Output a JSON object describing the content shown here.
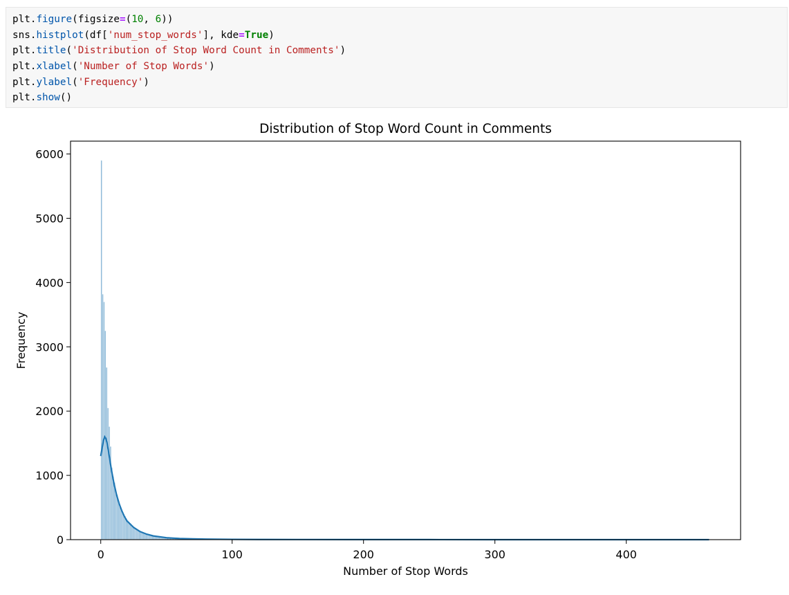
{
  "code_cell": {
    "lines": [
      [
        {
          "t": "plt."
        },
        {
          "t": "figure",
          "c": "fn"
        },
        {
          "t": "(figsize"
        },
        {
          "t": "=",
          "c": "op"
        },
        {
          "t": "("
        },
        {
          "t": "10",
          "c": "num"
        },
        {
          "t": ", "
        },
        {
          "t": "6",
          "c": "num"
        },
        {
          "t": "))"
        }
      ],
      [
        {
          "t": "sns."
        },
        {
          "t": "histplot",
          "c": "fn"
        },
        {
          "t": "(df["
        },
        {
          "t": "'num_stop_words'",
          "c": "str"
        },
        {
          "t": "], kde"
        },
        {
          "t": "=",
          "c": "op"
        },
        {
          "t": "True",
          "c": "kw"
        },
        {
          "t": ")"
        }
      ],
      [
        {
          "t": "plt."
        },
        {
          "t": "title",
          "c": "fn"
        },
        {
          "t": "("
        },
        {
          "t": "'Distribution of Stop Word Count in Comments'",
          "c": "str"
        },
        {
          "t": ")"
        }
      ],
      [
        {
          "t": "plt."
        },
        {
          "t": "xlabel",
          "c": "fn"
        },
        {
          "t": "("
        },
        {
          "t": "'Number of Stop Words'",
          "c": "str"
        },
        {
          "t": ")"
        }
      ],
      [
        {
          "t": "plt."
        },
        {
          "t": "ylabel",
          "c": "fn"
        },
        {
          "t": "("
        },
        {
          "t": "'Frequency'",
          "c": "str"
        },
        {
          "t": ")"
        }
      ],
      [
        {
          "t": "plt."
        },
        {
          "t": "show",
          "c": "fn"
        },
        {
          "t": "()"
        }
      ]
    ]
  },
  "chart_data": {
    "type": "bar",
    "title": "Distribution of Stop Word Count in Comments",
    "xlabel": "Number of Stop Words",
    "ylabel": "Frequency",
    "xlim": [
      -23,
      487
    ],
    "ylim": [
      0,
      6200
    ],
    "xticks": [
      0,
      100,
      200,
      300,
      400
    ],
    "yticks": [
      0,
      1000,
      2000,
      3000,
      4000,
      5000,
      6000
    ],
    "grid": false,
    "bar_color": "#1f77b4",
    "kde_color": "#1f77b4",
    "bins": {
      "x": [
        0,
        1,
        2,
        3,
        4,
        5,
        6,
        7,
        8,
        9,
        10,
        11,
        12,
        13,
        14,
        15,
        16,
        17,
        18,
        19,
        20,
        21,
        22,
        23,
        24,
        25,
        26,
        27,
        28,
        29,
        30,
        31,
        32,
        33,
        34,
        35,
        36,
        37,
        38,
        39,
        40,
        41,
        42,
        43,
        44,
        45,
        46,
        47,
        48,
        49,
        50,
        52,
        54,
        56,
        58,
        60,
        62,
        64,
        66,
        68,
        70,
        75,
        80,
        85,
        90,
        95,
        100,
        110,
        120,
        130,
        140,
        150,
        170,
        190,
        210,
        240,
        270,
        300,
        340,
        380,
        420,
        460
      ],
      "width": [
        1,
        1,
        1,
        1,
        1,
        1,
        1,
        1,
        1,
        1,
        1,
        1,
        1,
        1,
        1,
        1,
        1,
        1,
        1,
        1,
        1,
        1,
        1,
        1,
        1,
        1,
        1,
        1,
        1,
        1,
        1,
        1,
        1,
        1,
        1,
        1,
        1,
        1,
        1,
        1,
        1,
        1,
        1,
        1,
        1,
        1,
        1,
        1,
        1,
        1,
        2,
        2,
        2,
        2,
        2,
        2,
        2,
        2,
        2,
        2,
        5,
        5,
        5,
        5,
        5,
        5,
        10,
        10,
        10,
        10,
        10,
        20,
        20,
        20,
        30,
        30,
        30,
        40,
        40,
        40,
        40,
        3
      ],
      "values": [
        5900,
        3820,
        3700,
        3250,
        2680,
        2050,
        1760,
        1450,
        1120,
        980,
        890,
        760,
        700,
        600,
        540,
        480,
        440,
        400,
        370,
        330,
        300,
        280,
        260,
        240,
        220,
        200,
        185,
        170,
        155,
        140,
        130,
        120,
        110,
        100,
        92,
        85,
        78,
        72,
        66,
        60,
        55,
        52,
        48,
        45,
        42,
        40,
        37,
        35,
        33,
        31,
        29,
        27,
        25,
        23,
        21,
        19,
        17,
        15,
        14,
        13,
        11,
        9,
        8,
        7,
        6,
        5,
        4,
        3,
        3,
        2,
        2,
        1,
        1,
        1,
        1,
        1,
        1,
        1,
        1,
        1,
        1,
        1
      ]
    },
    "kde": {
      "x": [
        0,
        1,
        2,
        3,
        4,
        5,
        6,
        7,
        8,
        10,
        12,
        14,
        16,
        18,
        20,
        25,
        30,
        35,
        40,
        50,
        60,
        70,
        80,
        100,
        120,
        150,
        200,
        250,
        300,
        350,
        400,
        463
      ],
      "y": [
        1300,
        1420,
        1540,
        1600,
        1570,
        1480,
        1360,
        1230,
        1100,
        880,
        700,
        560,
        450,
        360,
        290,
        190,
        125,
        85,
        58,
        30,
        18,
        12,
        8,
        5,
        3,
        2,
        1,
        1,
        0,
        0,
        0,
        0
      ]
    }
  }
}
